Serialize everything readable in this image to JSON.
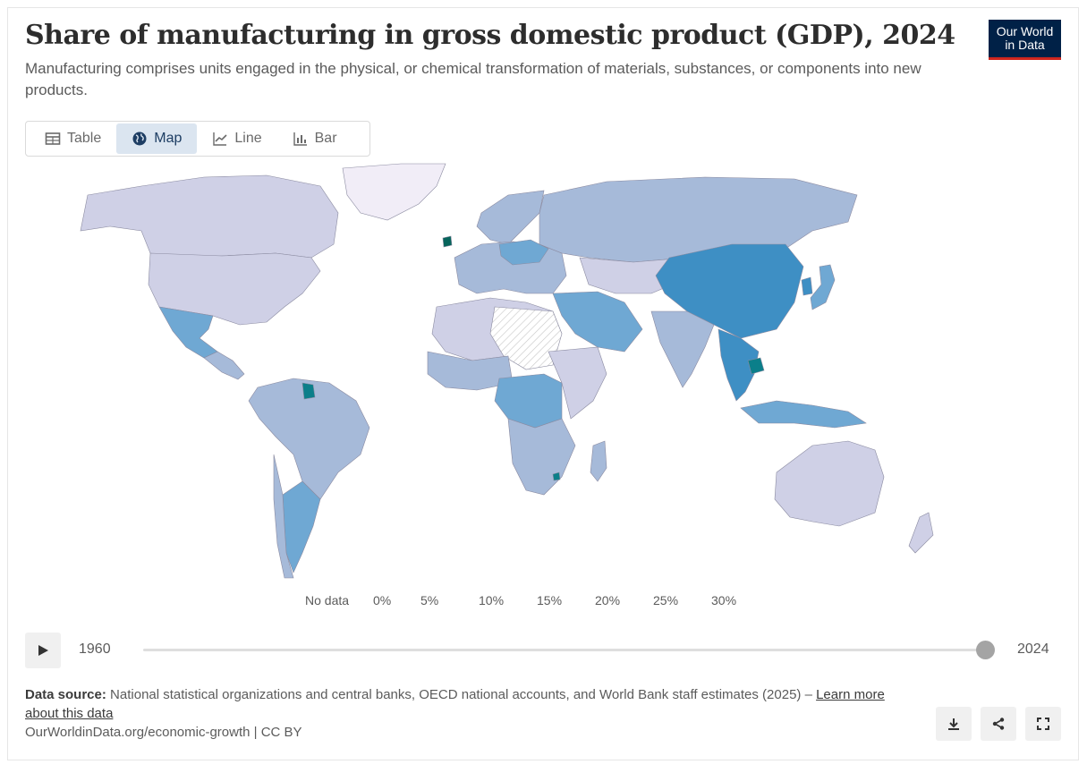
{
  "header": {
    "title": "Share of manufacturing in gross domestic product (GDP), 2024",
    "subtitle": "Manufacturing comprises units engaged in the physical, or chemical transformation of materials, substances, or components into new products.",
    "logo_line1": "Our World",
    "logo_line2": "in Data"
  },
  "tabs": [
    {
      "label": "Table",
      "icon": "table-icon",
      "active": false
    },
    {
      "label": "Map",
      "icon": "globe-icon",
      "active": true
    },
    {
      "label": "Line",
      "icon": "line-chart-icon",
      "active": false
    },
    {
      "label": "Bar",
      "icon": "bar-chart-icon",
      "active": false
    }
  ],
  "chart_data": {
    "type": "map",
    "title": "Share of manufacturing in gross domestic product (GDP), 2024",
    "unit": "%",
    "legend": {
      "no_data_label": "No data",
      "bins": [
        {
          "min": 0,
          "max": 5,
          "color": "#f1edf7"
        },
        {
          "min": 5,
          "max": 10,
          "color": "#cfd0e6"
        },
        {
          "min": 10,
          "max": 15,
          "color": "#a6bad9"
        },
        {
          "min": 15,
          "max": 20,
          "color": "#6fa8d3"
        },
        {
          "min": 20,
          "max": 25,
          "color": "#3e8fc4"
        },
        {
          "min": 25,
          "max": 30,
          "color": "#0b7f8a"
        },
        {
          "min": 30,
          "max": 35,
          "color": "#07655c"
        }
      ],
      "tick_labels": [
        "0%",
        "5%",
        "10%",
        "15%",
        "20%",
        "25%",
        "30%"
      ],
      "no_data_color": "#ffffff"
    },
    "regions": [
      {
        "name": "Canada",
        "bin": 1
      },
      {
        "name": "United States",
        "bin": 1
      },
      {
        "name": "Mexico",
        "bin": 3
      },
      {
        "name": "Greenland",
        "bin": 0
      },
      {
        "name": "Brazil",
        "bin": 2
      },
      {
        "name": "Argentina",
        "bin": 3
      },
      {
        "name": "Paraguay",
        "bin": 3
      },
      {
        "name": "Guyana/Suriname",
        "bin": 5
      },
      {
        "name": "Russia",
        "bin": 2
      },
      {
        "name": "Europe",
        "bin": 2
      },
      {
        "name": "Poland/Czechia",
        "bin": 3
      },
      {
        "name": "Ireland",
        "bin": 6
      },
      {
        "name": "China",
        "bin": 4
      },
      {
        "name": "Japan",
        "bin": 3
      },
      {
        "name": "Korea",
        "bin": 4
      },
      {
        "name": "India",
        "bin": 2
      },
      {
        "name": "Southeast Asia",
        "bin": 4
      },
      {
        "name": "Cambodia",
        "bin": 5
      },
      {
        "name": "Indonesia",
        "bin": 3
      },
      {
        "name": "Middle East",
        "bin": 3
      },
      {
        "name": "Central Africa",
        "bin": 3
      },
      {
        "name": "Eswatini",
        "bin": 5
      },
      {
        "name": "Sahara (no data)",
        "bin": null
      },
      {
        "name": "Australia",
        "bin": 1
      },
      {
        "name": "New Zealand",
        "bin": 1
      }
    ]
  },
  "timeline": {
    "start_year": "1960",
    "end_year": "2024",
    "position": 1.0
  },
  "footer": {
    "source_label": "Data source:",
    "source_text": "National statistical organizations and central banks, OECD national accounts, and World Bank staff estimates (2025) –",
    "learn_more": "Learn more about this data",
    "origin": "OurWorldinData.org/economic-growth | CC BY"
  },
  "actions": [
    {
      "name": "download-icon"
    },
    {
      "name": "share-icon"
    },
    {
      "name": "fullscreen-icon"
    }
  ]
}
